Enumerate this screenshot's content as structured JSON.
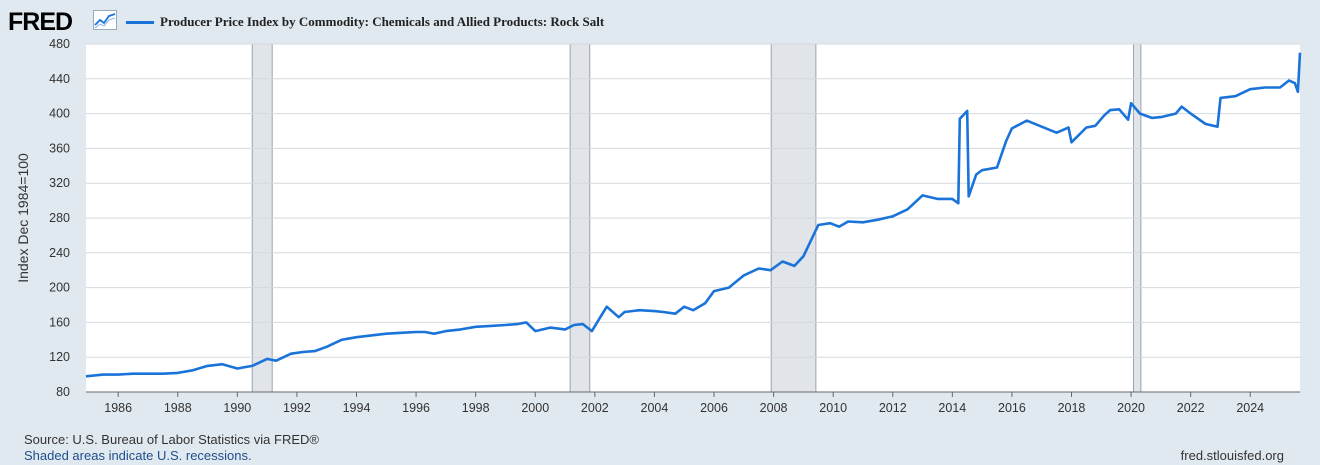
{
  "header": {
    "logo_text": "FRED",
    "legend_label": "Producer Price Index by Commodity: Chemicals and Allied Products: Rock Salt"
  },
  "footer": {
    "source": "Source: U.S. Bureau of Labor Statistics via FRED®",
    "note": "Shaded areas indicate U.S. recessions.",
    "site": "fred.stlouisfed.org"
  },
  "colors": {
    "series": "#1a73d9",
    "recession": "#e1e5ea",
    "plot_bg": "#ffffff",
    "page_bg": "#e1e9f0"
  },
  "chart_data": {
    "type": "line",
    "title": "",
    "xlabel": "",
    "ylabel": "Index Dec 1984=100",
    "xlim": [
      1984.92,
      2025.67
    ],
    "ylim": [
      80,
      480
    ],
    "x_ticks": [
      "1986",
      "1988",
      "1990",
      "1992",
      "1994",
      "1996",
      "1998",
      "2000",
      "2002",
      "2004",
      "2006",
      "2008",
      "2010",
      "2012",
      "2014",
      "2016",
      "2018",
      "2020",
      "2022",
      "2024"
    ],
    "y_ticks": [
      80,
      120,
      160,
      200,
      240,
      280,
      320,
      360,
      400,
      440,
      480
    ],
    "grid": true,
    "recessions": [
      [
        1990.5,
        1991.17
      ],
      [
        2001.17,
        2001.83
      ],
      [
        2007.92,
        2009.42
      ],
      [
        2020.08,
        2020.33
      ]
    ],
    "series": [
      {
        "name": "Producer Price Index by Commodity: Chemicals and Allied Products: Rock Salt",
        "x": [
          1984.92,
          1985.5,
          1986.0,
          1986.5,
          1987.0,
          1987.5,
          1988.0,
          1988.5,
          1989.0,
          1989.5,
          1990.0,
          1990.5,
          1991.0,
          1991.3,
          1991.8,
          1992.2,
          1992.6,
          1993.0,
          1993.5,
          1994.0,
          1994.5,
          1995.0,
          1995.5,
          1996.0,
          1996.3,
          1996.6,
          1997.0,
          1997.5,
          1998.0,
          1998.5,
          1999.0,
          1999.4,
          1999.7,
          2000.0,
          2000.5,
          2001.0,
          2001.3,
          2001.6,
          2001.9,
          2002.2,
          2002.4,
          2002.8,
          2003.0,
          2003.5,
          2004.0,
          2004.3,
          2004.7,
          2005.0,
          2005.3,
          2005.7,
          2006.0,
          2006.5,
          2007.0,
          2007.5,
          2007.9,
          2008.3,
          2008.7,
          2009.0,
          2009.5,
          2009.9,
          2010.2,
          2010.5,
          2011.0,
          2011.5,
          2012.0,
          2012.5,
          2013.0,
          2013.5,
          2014.0,
          2014.2,
          2014.25,
          2014.5,
          2014.55,
          2014.8,
          2015.0,
          2015.5,
          2015.8,
          2016.0,
          2016.5,
          2017.0,
          2017.5,
          2017.9,
          2018.0,
          2018.5,
          2018.8,
          2019.1,
          2019.3,
          2019.6,
          2019.9,
          2020.0,
          2020.3,
          2020.7,
          2021.0,
          2021.5,
          2021.7,
          2022.0,
          2022.5,
          2022.9,
          2023.0,
          2023.5,
          2024.0,
          2024.5,
          2025.0,
          2025.3,
          2025.5,
          2025.6,
          2025.67
        ],
        "values": [
          98,
          100,
          100,
          101,
          101,
          101,
          102,
          105,
          110,
          112,
          107,
          110,
          118,
          116,
          124,
          126,
          127,
          132,
          140,
          143,
          145,
          147,
          148,
          149,
          149,
          147,
          150,
          152,
          155,
          156,
          157,
          158,
          160,
          150,
          154,
          152,
          157,
          158,
          150,
          167,
          178,
          166,
          172,
          174,
          173,
          172,
          170,
          178,
          174,
          182,
          196,
          200,
          214,
          222,
          220,
          230,
          225,
          236,
          272,
          274,
          270,
          276,
          275,
          278,
          282,
          290,
          306,
          302,
          302,
          297,
          394,
          403,
          305,
          330,
          335,
          338,
          368,
          383,
          392,
          385,
          378,
          384,
          367,
          384,
          386,
          398,
          404,
          405,
          393,
          412,
          400,
          395,
          396,
          400,
          408,
          400,
          388,
          385,
          418,
          420,
          428,
          430,
          430,
          438,
          435,
          425,
          470
        ]
      }
    ]
  }
}
